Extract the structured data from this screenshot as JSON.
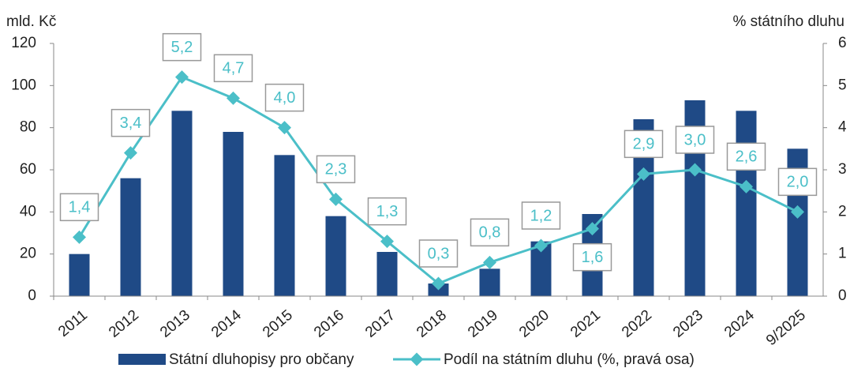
{
  "chart_data": {
    "type": "bar-line",
    "y_label": "mld. Kč",
    "y2_label": "% státního dluhu",
    "categories": [
      "2011",
      "2012",
      "2013",
      "2014",
      "2015",
      "2016",
      "2017",
      "2018",
      "2019",
      "2020",
      "2021",
      "2022",
      "2023",
      "2024",
      "9/2025"
    ],
    "series": [
      {
        "name": "Státní dluhopisy pro občany",
        "type": "bar",
        "color": "#1f4a86",
        "values": [
          20,
          56,
          88,
          78,
          67,
          38,
          21,
          6,
          13,
          26,
          39,
          84,
          93,
          88,
          70
        ]
      },
      {
        "name": "Podíl na státním dluhu (%, pravá osa)",
        "type": "line",
        "axis": "y2",
        "color": "#4bbfc8",
        "values": [
          1.4,
          3.4,
          5.2,
          4.7,
          4.0,
          2.3,
          1.3,
          0.3,
          0.8,
          1.2,
          1.6,
          2.9,
          3.0,
          2.6,
          2.0
        ],
        "value_labels": [
          "1,4",
          "3,4",
          "5,2",
          "4,7",
          "4,0",
          "2,3",
          "1,3",
          "0,3",
          "0,8",
          "1,2",
          "1,6",
          "2,9",
          "3,0",
          "2,6",
          "2,0"
        ]
      }
    ],
    "ylim": [
      0,
      120
    ],
    "yticks": [
      0,
      20,
      40,
      60,
      80,
      100,
      120
    ],
    "y2lim": [
      0,
      6
    ],
    "y2ticks": [
      0,
      1,
      2,
      3,
      4,
      5,
      6
    ]
  }
}
